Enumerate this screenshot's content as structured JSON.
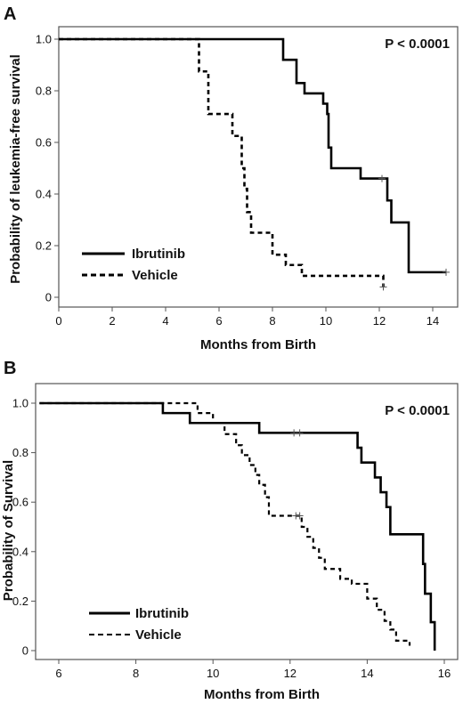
{
  "chart_data": [
    {
      "panel": "A",
      "type": "line",
      "subtype": "kaplan-meier",
      "annotation": "P < 0.0001",
      "xlabel": "Months from Birth",
      "ylabel": "Probability of leukemia-free survival",
      "xlim": [
        0,
        15
      ],
      "ylim": [
        0,
        1.0
      ],
      "xticks": [
        "0",
        "2",
        "4",
        "6",
        "8",
        "10",
        "12",
        "14"
      ],
      "yticks": [
        "0",
        "0.2",
        "0.4",
        "0.6",
        "0.8",
        "1.0"
      ],
      "legend_position": "bottom-left",
      "series": [
        {
          "name": "Ibrutinib",
          "style": "solid",
          "color": "#000000",
          "steps": [
            [
              0,
              1.0
            ],
            [
              8.4,
              0.92
            ],
            [
              8.9,
              0.83
            ],
            [
              9.2,
              0.79
            ],
            [
              9.9,
              0.75
            ],
            [
              10.05,
              0.71
            ],
            [
              10.1,
              0.58
            ],
            [
              10.2,
              0.5
            ],
            [
              11.3,
              0.46
            ],
            [
              12.3,
              0.375
            ],
            [
              12.45,
              0.29
            ],
            [
              13.1,
              0.097
            ]
          ],
          "end_x": 14.5,
          "censored": [
            [
              12.1,
              0.46
            ],
            [
              14.5,
              0.097
            ]
          ]
        },
        {
          "name": "Vehicle",
          "style": "dashed",
          "color": "#000000",
          "steps": [
            [
              0,
              1.0
            ],
            [
              5.25,
              0.875
            ],
            [
              5.6,
              0.71
            ],
            [
              6.5,
              0.625
            ],
            [
              6.85,
              0.5
            ],
            [
              6.95,
              0.42
            ],
            [
              7.05,
              0.33
            ],
            [
              7.2,
              0.25
            ],
            [
              8.0,
              0.165
            ],
            [
              8.5,
              0.125
            ],
            [
              9.1,
              0.083
            ],
            [
              12.15,
              0.04
            ]
          ],
          "end_x": 12.15,
          "censored": [
            [
              12.15,
              0.04
            ]
          ]
        }
      ]
    },
    {
      "panel": "B",
      "type": "line",
      "subtype": "kaplan-meier",
      "annotation": "P < 0.0001",
      "xlabel": "Months from Birth",
      "ylabel": "Probability of Survival",
      "xlim": [
        5.5,
        16.5
      ],
      "ylim": [
        0,
        1.0
      ],
      "xticks": [
        "6",
        "8",
        "10",
        "12",
        "14",
        "16"
      ],
      "yticks": [
        "0",
        "0.2",
        "0.4",
        "0.6",
        "0.8",
        "1.0"
      ],
      "legend_position": "bottom-left",
      "series": [
        {
          "name": "Ibrutinib",
          "style": "solid",
          "color": "#000000",
          "steps": [
            [
              5.5,
              1.0
            ],
            [
              8.7,
              0.96
            ],
            [
              9.4,
              0.92
            ],
            [
              11.2,
              0.88
            ],
            [
              13.75,
              0.82
            ],
            [
              13.85,
              0.76
            ],
            [
              14.2,
              0.7
            ],
            [
              14.35,
              0.64
            ],
            [
              14.5,
              0.58
            ],
            [
              14.6,
              0.47
            ],
            [
              15.45,
              0.35
            ],
            [
              15.5,
              0.23
            ],
            [
              15.65,
              0.115
            ],
            [
              15.75,
              0.0
            ]
          ],
          "end_x": 15.75,
          "censored": [
            [
              12.1,
              0.88
            ],
            [
              12.25,
              0.88
            ]
          ]
        },
        {
          "name": "Vehicle",
          "style": "dashed",
          "color": "#000000",
          "steps": [
            [
              5.5,
              1.0
            ],
            [
              9.6,
              0.96
            ],
            [
              10.0,
              0.92
            ],
            [
              10.3,
              0.875
            ],
            [
              10.6,
              0.83
            ],
            [
              10.75,
              0.79
            ],
            [
              10.95,
              0.75
            ],
            [
              11.1,
              0.71
            ],
            [
              11.2,
              0.67
            ],
            [
              11.35,
              0.62
            ],
            [
              11.45,
              0.545
            ],
            [
              12.3,
              0.5
            ],
            [
              12.45,
              0.46
            ],
            [
              12.6,
              0.415
            ],
            [
              12.75,
              0.375
            ],
            [
              12.9,
              0.33
            ],
            [
              13.3,
              0.29
            ],
            [
              13.6,
              0.27
            ],
            [
              14.0,
              0.21
            ],
            [
              14.25,
              0.165
            ],
            [
              14.45,
              0.12
            ],
            [
              14.6,
              0.085
            ],
            [
              14.75,
              0.04
            ],
            [
              15.1,
              0.02
            ]
          ],
          "end_x": 15.1,
          "censored": [
            [
              12.15,
              0.545
            ],
            [
              12.25,
              0.545
            ]
          ]
        }
      ]
    }
  ]
}
